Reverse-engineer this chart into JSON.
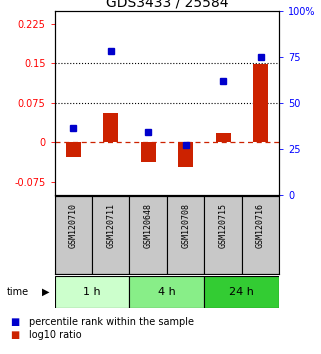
{
  "title": "GDS3433 / 25584",
  "samples": [
    "GSM120710",
    "GSM120711",
    "GSM120648",
    "GSM120708",
    "GSM120715",
    "GSM120716"
  ],
  "log10_ratio": [
    -0.028,
    0.055,
    -0.038,
    -0.048,
    0.018,
    0.148
  ],
  "percentile_rank": [
    0.36,
    0.78,
    0.34,
    0.27,
    0.62,
    0.75
  ],
  "left_ylim": [
    -0.1,
    0.25
  ],
  "left_yticks": [
    -0.075,
    0.0,
    0.075,
    0.15,
    0.225
  ],
  "left_yticklabels": [
    "-0.075",
    "0",
    "0.075",
    "0.15",
    "0.225"
  ],
  "right_pct_ticks": [
    0,
    25,
    50,
    75,
    100
  ],
  "right_yticklabels": [
    "0",
    "25",
    "50",
    "75",
    "100%"
  ],
  "hlines": [
    0.075,
    0.15
  ],
  "bar_color": "#cc2200",
  "dot_color": "#0000cc",
  "zero_line_color": "#cc2200",
  "time_groups": [
    {
      "label": "1 h",
      "start": 0,
      "end": 1,
      "color": "#ccffcc"
    },
    {
      "label": "4 h",
      "start": 2,
      "end": 3,
      "color": "#88ee88"
    },
    {
      "label": "24 h",
      "start": 4,
      "end": 5,
      "color": "#33cc33"
    }
  ],
  "title_fontsize": 10,
  "tick_fontsize": 7,
  "sample_fontsize": 6,
  "legend_fontsize": 7,
  "time_fontsize": 8
}
